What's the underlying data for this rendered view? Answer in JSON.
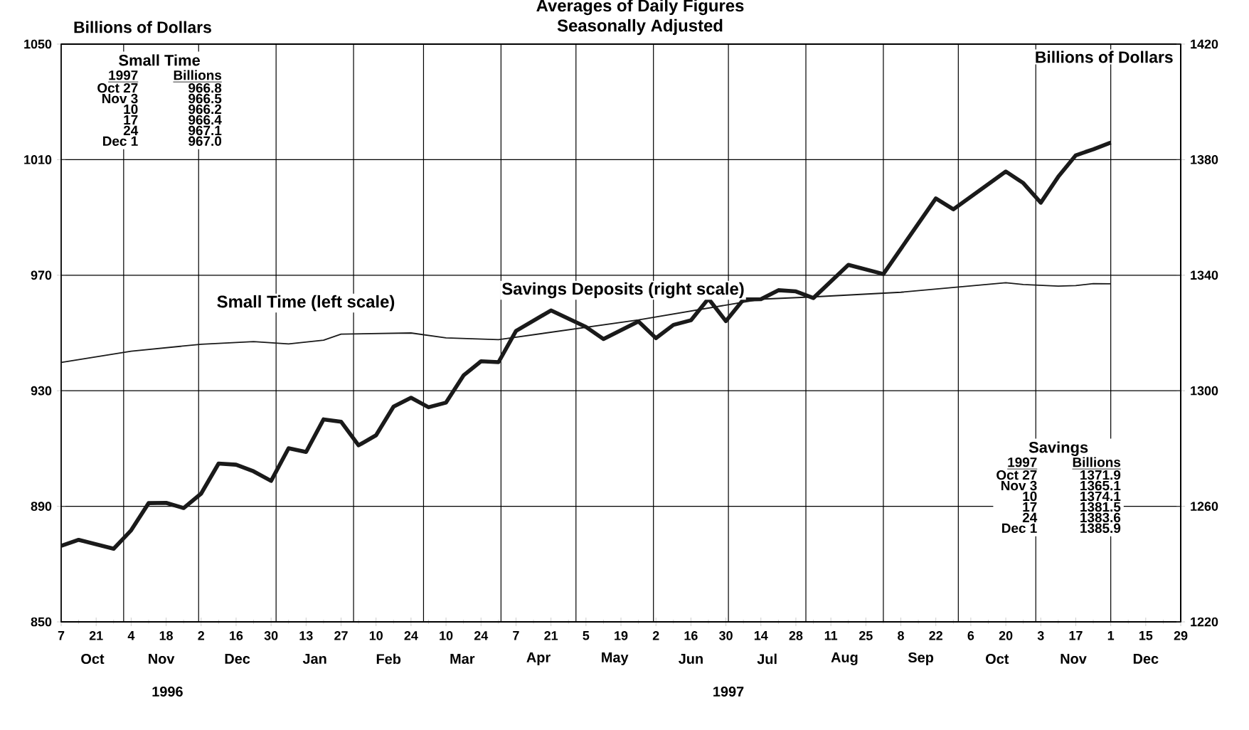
{
  "chart_data": {
    "type": "line",
    "title": "Averages of Daily Figures",
    "subtitle": "Seasonally Adjusted",
    "ylabel": "Billions of Dollars",
    "y2label": "Billions of Dollars",
    "xlim": [
      "1996-10-07",
      "1997-12-29"
    ],
    "xticks": [
      {
        "value": "1996-10-07",
        "label": "7"
      },
      {
        "value": "1996-10-21",
        "label": "21"
      },
      {
        "value": "1996-11-04",
        "label": "4"
      },
      {
        "value": "1996-11-18",
        "label": "18"
      },
      {
        "value": "1996-12-02",
        "label": "2"
      },
      {
        "value": "1996-12-16",
        "label": "16"
      },
      {
        "value": "1996-12-30",
        "label": "30"
      },
      {
        "value": "1997-01-13",
        "label": "13"
      },
      {
        "value": "1997-01-27",
        "label": "27"
      },
      {
        "value": "1997-02-10",
        "label": "10"
      },
      {
        "value": "1997-02-24",
        "label": "24"
      },
      {
        "value": "1997-03-10",
        "label": "10"
      },
      {
        "value": "1997-03-24",
        "label": "24"
      },
      {
        "value": "1997-04-07",
        "label": "7"
      },
      {
        "value": "1997-04-21",
        "label": "21"
      },
      {
        "value": "1997-05-05",
        "label": "5"
      },
      {
        "value": "1997-05-19",
        "label": "19"
      },
      {
        "value": "1997-06-02",
        "label": "2"
      },
      {
        "value": "1997-06-16",
        "label": "16"
      },
      {
        "value": "1997-06-30",
        "label": "30"
      },
      {
        "value": "1997-07-14",
        "label": "14"
      },
      {
        "value": "1997-07-28",
        "label": "28"
      },
      {
        "value": "1997-08-11",
        "label": "11"
      },
      {
        "value": "1997-08-25",
        "label": "25"
      },
      {
        "value": "1997-09-08",
        "label": "8"
      },
      {
        "value": "1997-09-22",
        "label": "22"
      },
      {
        "value": "1997-10-06",
        "label": "6"
      },
      {
        "value": "1997-10-20",
        "label": "20"
      },
      {
        "value": "1997-11-03",
        "label": "3"
      },
      {
        "value": "1997-11-17",
        "label": "17"
      },
      {
        "value": "1997-12-01",
        "label": "1"
      },
      {
        "value": "1997-12-15",
        "label": "15"
      },
      {
        "value": "1997-12-29",
        "label": "29"
      },
      {
        "value": "1996-11-01",
        "label": null
      },
      {
        "value": "1996-12-01",
        "label": null
      },
      {
        "value": "1997-01-01",
        "label": null
      },
      {
        "value": "1997-02-01",
        "label": null
      },
      {
        "value": "1997-03-01",
        "label": null
      },
      {
        "value": "1997-04-01",
        "label": null
      },
      {
        "value": "1997-05-01",
        "label": null
      },
      {
        "value": "1997-06-01",
        "label": null
      },
      {
        "value": "1997-07-01",
        "label": null
      },
      {
        "value": "1997-08-01",
        "label": null
      },
      {
        "value": "1997-09-01",
        "label": null
      },
      {
        "value": "1997-10-01",
        "label": null
      },
      {
        "value": "1997-11-01",
        "label": null
      },
      {
        "value": "1997-12-01",
        "label": null
      }
    ],
    "ylim": [
      850,
      1050
    ],
    "yticks": [
      850,
      890,
      930,
      970,
      1010,
      1050
    ],
    "y2lim": [
      1220,
      1420
    ],
    "y2ticks": [
      1220,
      1260,
      1300,
      1340,
      1380,
      1420
    ],
    "grid": true,
    "legend": false,
    "series": [
      {
        "name": "Small Time (left scale)",
        "color": "#1a1a1a",
        "axis": "y",
        "x": [
          "1996-10-07",
          "1996-11-04",
          "1996-12-02",
          "1996-12-23",
          "1997-01-06",
          "1997-01-20",
          "1997-01-27",
          "1997-02-24",
          "1997-03-10",
          "1997-03-31",
          "1997-05-26",
          "1997-07-14",
          "1997-08-04",
          "1997-09-08",
          "1997-10-20",
          "1997-10-27",
          "1997-11-03",
          "1997-11-10",
          "1997-11-17",
          "1997-11-24",
          "1997-12-01"
        ],
        "values": [
          939.8,
          943.7,
          946.1,
          947.0,
          946.2,
          947.5,
          949.6,
          950.0,
          948.3,
          947.7,
          954.5,
          961.7,
          962.5,
          964.1,
          967.4,
          966.8,
          966.5,
          966.2,
          966.4,
          967.1,
          967.0
        ]
      },
      {
        "name": "Savings Deposits (right scale)",
        "color": "#1a1a1a",
        "axis": "y2",
        "x": [
          "1996-10-07",
          "1996-10-14",
          "1996-10-28",
          "1996-11-04",
          "1996-11-11",
          "1996-11-18",
          "1996-11-25",
          "1996-12-02",
          "1996-12-09",
          "1996-12-16",
          "1996-12-23",
          "1996-12-30",
          "1997-01-06",
          "1997-01-13",
          "1997-01-20",
          "1997-01-27",
          "1997-02-03",
          "1997-02-10",
          "1997-02-17",
          "1997-02-24",
          "1997-03-03",
          "1997-03-10",
          "1997-03-17",
          "1997-03-24",
          "1997-03-31",
          "1997-04-07",
          "1997-04-21",
          "1997-05-05",
          "1997-05-12",
          "1997-05-26",
          "1997-06-02",
          "1997-06-09",
          "1997-06-16",
          "1997-06-23",
          "1997-06-30",
          "1997-07-07",
          "1997-07-14",
          "1997-07-21",
          "1997-07-28",
          "1997-08-04",
          "1997-08-18",
          "1997-09-01",
          "1997-09-22",
          "1997-09-29",
          "1997-10-20",
          "1997-10-27",
          "1997-11-03",
          "1997-11-10",
          "1997-11-17",
          "1997-11-24",
          "1997-12-01"
        ],
        "values": [
          1246.3,
          1248.4,
          1245.3,
          1251.7,
          1261.1,
          1261.2,
          1259.4,
          1264.4,
          1274.8,
          1274.4,
          1272.1,
          1268.8,
          1280.1,
          1278.8,
          1290.1,
          1289.3,
          1281.1,
          1284.6,
          1294.5,
          1297.6,
          1294.3,
          1295.9,
          1305.3,
          1310.2,
          1309.9,
          1320.7,
          1327.8,
          1322.1,
          1317.9,
          1324.0,
          1318.2,
          1322.8,
          1324.4,
          1331.9,
          1324.1,
          1331.6,
          1331.7,
          1334.8,
          1334.4,
          1332.1,
          1343.6,
          1340.4,
          1366.6,
          1362.8,
          1375.9,
          1371.9,
          1365.1,
          1374.1,
          1381.5,
          1383.6,
          1385.9
        ]
      }
    ],
    "annotations": [
      "Small Time",
      "1997",
      "Billions",
      "Oct 27",
      "Nov 3",
      "10",
      "17",
      "24",
      "Dec 1",
      "966.8",
      "966.5",
      "966.2",
      "966.4",
      "967.1",
      "967.0",
      "Savings",
      "1997",
      "Billions",
      "Oct 27",
      "Nov 3",
      "10",
      "17",
      "24",
      "Dec 1",
      "1371.9",
      "1365.1",
      "1374.1",
      "1381.5",
      "1383.6",
      "1385.9",
      "Oct",
      "Nov",
      "Dec",
      "Jan",
      "Feb",
      "Mar",
      "Apr",
      "May",
      "Jun",
      "Jul",
      "Aug",
      "Sep",
      "Oct",
      "Nov",
      "Dec",
      "1996",
      "1997"
    ]
  }
}
